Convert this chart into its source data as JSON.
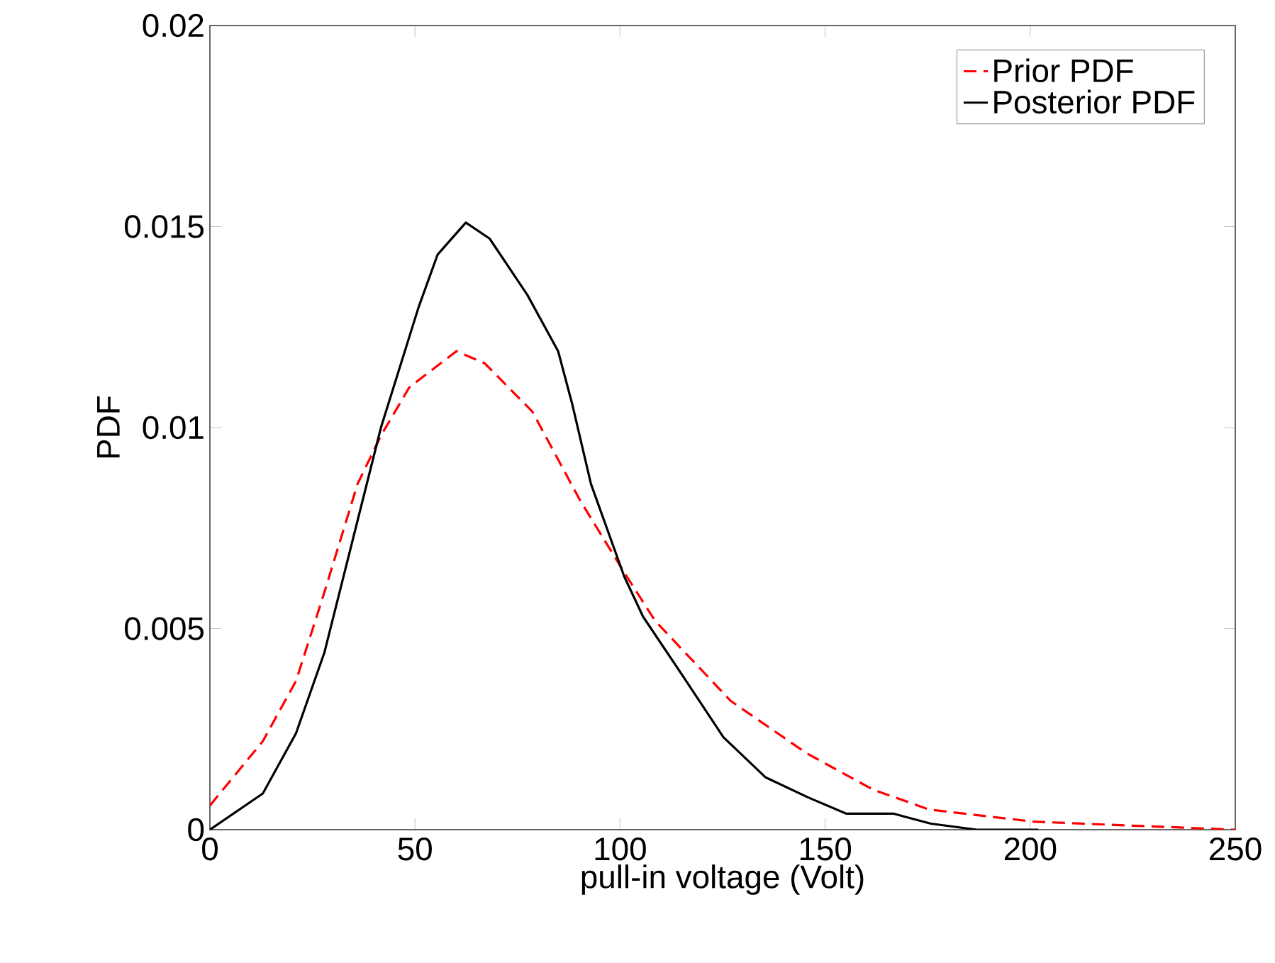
{
  "chart_data": {
    "type": "line",
    "xlabel": "pull-in voltage (Volt)",
    "ylabel": "PDF",
    "xlim": [
      0,
      250
    ],
    "ylim": [
      0,
      0.02
    ],
    "xticks": [
      0,
      50,
      100,
      150,
      200,
      250
    ],
    "yticks": [
      0,
      0.005,
      0.01,
      0.015,
      0.02
    ],
    "legend": "top right",
    "grid": false,
    "series": [
      {
        "name": "Prior PDF",
        "color": "#ff0000",
        "line_style": "dashed",
        "x": [
          0,
          12.9,
          21,
          27.9,
          36,
          41.7,
          48.6,
          60.1,
          67,
          78.6,
          90.2,
          101,
          108.5,
          127,
          145.5,
          161.6,
          175.4,
          200.8,
          225,
          250
        ],
        "values": [
          0.0006,
          0.0022,
          0.0037,
          0.0059,
          0.0086,
          0.0098,
          0.011,
          0.0119,
          0.0116,
          0.0104,
          0.0082,
          0.0064,
          0.0052,
          0.0032,
          0.0019,
          0.001,
          0.0005,
          0.0002,
          0.0001,
          0
        ]
      },
      {
        "name": "Posterior PDF",
        "color": "#000000",
        "line_style": "solid",
        "x": [
          0,
          12.9,
          21,
          27.9,
          34.8,
          41.7,
          50.9,
          55.5,
          62.4,
          68.2,
          77.4,
          84.9,
          88.3,
          92.9,
          101,
          105.6,
          114.8,
          125.2,
          135.5,
          145.9,
          155.1,
          166.6,
          175.8,
          187,
          202
        ],
        "values": [
          0,
          0.0009,
          0.0024,
          0.0044,
          0.0072,
          0.01,
          0.013,
          0.0143,
          0.0151,
          0.0147,
          0.0133,
          0.0119,
          0.0106,
          0.0086,
          0.0063,
          0.0053,
          0.0039,
          0.0023,
          0.0013,
          0.0008,
          0.0004,
          0.0004,
          0.00015,
          0,
          0
        ]
      }
    ]
  }
}
